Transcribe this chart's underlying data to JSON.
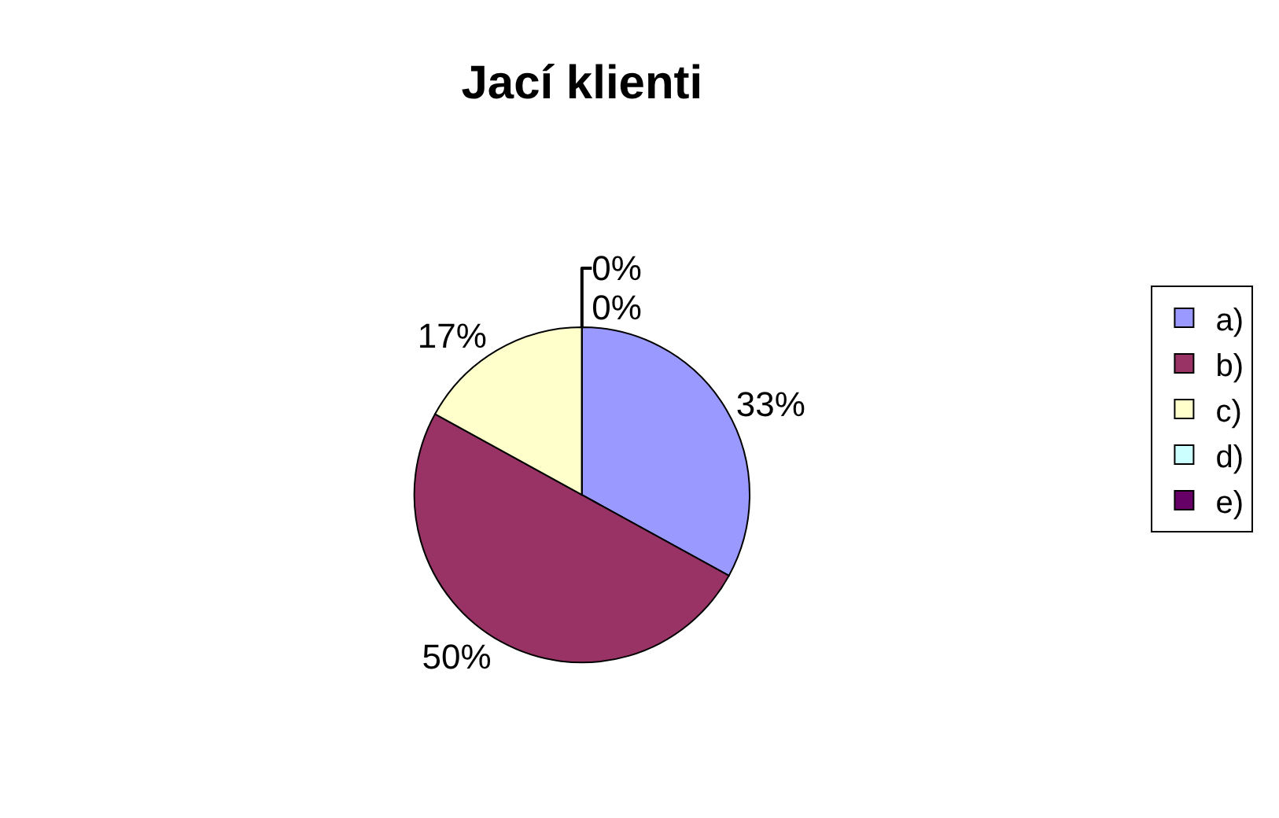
{
  "chart_data": {
    "type": "pie",
    "title": "Jací klienti",
    "categories": [
      "a)",
      "b)",
      "c)",
      "d)",
      "e)"
    ],
    "values": [
      33,
      50,
      17,
      0,
      0
    ],
    "colors": [
      "#9999ff",
      "#993366",
      "#ffffcc",
      "#ccffff",
      "#660066"
    ],
    "value_labels": [
      "33%",
      "50%",
      "17%",
      "0%",
      "0%"
    ],
    "legend": "right"
  }
}
